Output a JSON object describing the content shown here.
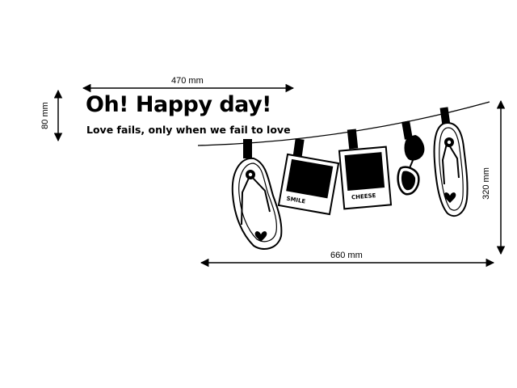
{
  "heading": {
    "title": "Oh! Happy day!",
    "subtitle": "Love fails, only when we fail to love"
  },
  "dimensions": {
    "text_width": "470 mm",
    "text_height": "80 mm",
    "line_width": "660 mm",
    "line_height": "320 mm"
  },
  "items": {
    "photo_left_caption": "SMILE",
    "photo_right_caption": "CHEESE"
  },
  "colors": {
    "ink": "#000000",
    "background": "#ffffff"
  }
}
